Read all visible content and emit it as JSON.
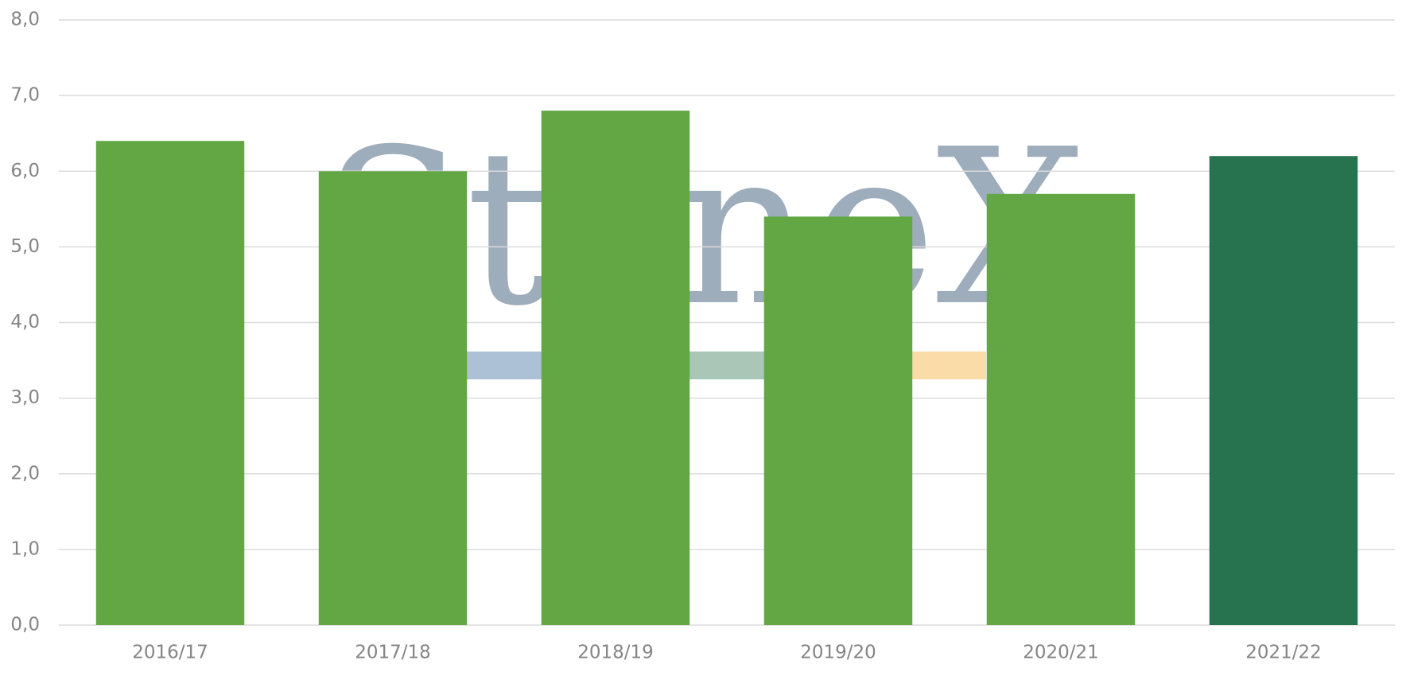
{
  "chart_data": {
    "type": "bar",
    "watermark": "StoneX",
    "categories": [
      "2016/17",
      "2017/18",
      "2018/19",
      "2019/20",
      "2020/21",
      "2021/22"
    ],
    "values": [
      6.4,
      6.0,
      6.8,
      5.4,
      5.7,
      6.2
    ],
    "colors": [
      "#62a744",
      "#62a744",
      "#62a744",
      "#62a744",
      "#62a744",
      "#277350"
    ],
    "ylim": [
      0,
      8
    ],
    "yticks": [
      {
        "value": 0,
        "label": "0,0"
      },
      {
        "value": 1,
        "label": "1,0"
      },
      {
        "value": 2,
        "label": "2,0"
      },
      {
        "value": 3,
        "label": "3,0"
      },
      {
        "value": 4,
        "label": "4,0"
      },
      {
        "value": 5,
        "label": "5,0"
      },
      {
        "value": 6,
        "label": "6,0"
      },
      {
        "value": 7,
        "label": "7,0"
      },
      {
        "value": 8,
        "label": "8,0"
      }
    ],
    "grid": true
  }
}
